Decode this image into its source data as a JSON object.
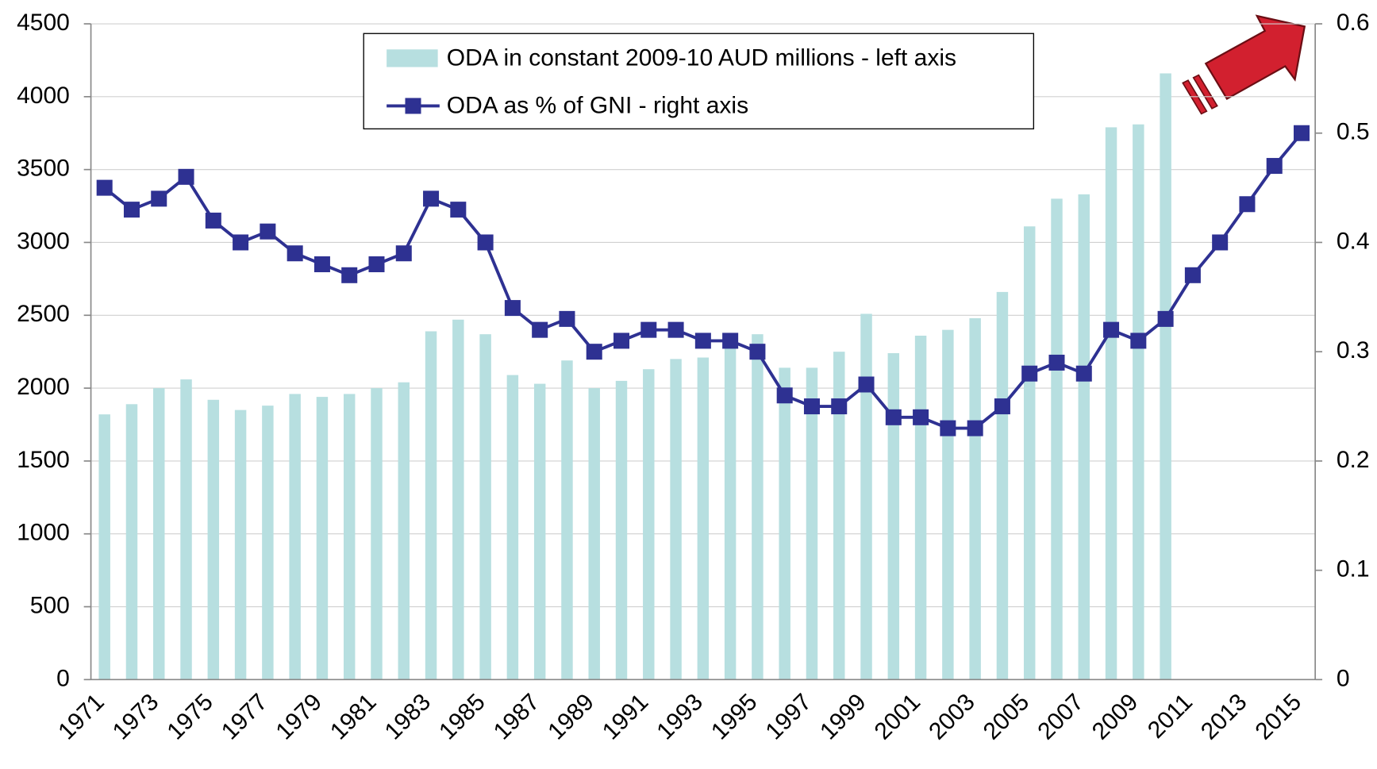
{
  "chart_data": {
    "type": "bar_line",
    "categories": [
      "1971",
      null,
      "1973",
      null,
      "1975",
      null,
      "1977",
      null,
      "1979",
      null,
      "1981",
      null,
      "1983",
      null,
      "1985",
      null,
      "1987",
      null,
      "1989",
      null,
      "1991",
      null,
      "1993",
      null,
      "1995",
      null,
      "1997",
      null,
      "1999",
      null,
      "2001",
      null,
      "2003",
      null,
      "2005",
      null,
      "2007",
      null,
      "2009",
      null,
      "2011",
      null,
      "2013",
      null,
      "2015"
    ],
    "series": [
      {
        "name": "ODA in constant 2009-10 AUD millions - left axis",
        "type": "bar",
        "color": "#b7dfe0",
        "values": [
          1820,
          1890,
          2000,
          2060,
          1920,
          1850,
          1880,
          1960,
          1940,
          1960,
          2000,
          2040,
          2390,
          2470,
          2370,
          2090,
          2030,
          2190,
          2000,
          2050,
          2130,
          2200,
          2210,
          2360,
          2370,
          2140,
          2140,
          2250,
          2510,
          2240,
          2360,
          2400,
          2480,
          2660,
          3110,
          3300,
          3330,
          3790,
          3810,
          4160,
          null,
          null,
          null,
          null,
          null
        ]
      },
      {
        "name": "ODA as % of GNI - right axis",
        "type": "line",
        "axis": "y2",
        "color": "#2e3192",
        "values": [
          0.45,
          0.43,
          0.44,
          0.46,
          0.42,
          0.4,
          0.41,
          0.39,
          0.38,
          0.37,
          0.38,
          0.39,
          0.44,
          0.43,
          0.4,
          0.34,
          0.32,
          0.33,
          0.3,
          0.31,
          0.32,
          0.32,
          0.31,
          0.31,
          0.3,
          0.26,
          0.25,
          0.25,
          0.27,
          0.24,
          0.24,
          0.23,
          0.23,
          0.25,
          0.28,
          0.29,
          0.28,
          0.32,
          0.31,
          0.33,
          0.37,
          0.4,
          0.435,
          0.47,
          0.5
        ]
      }
    ],
    "ylim": [
      0,
      4500
    ],
    "yticks": [
      0,
      500,
      1000,
      1500,
      2000,
      2500,
      3000,
      3500,
      4000,
      4500
    ],
    "y2lim": [
      0,
      0.6
    ],
    "y2ticks": [
      0,
      0.1,
      0.2,
      0.3,
      0.4,
      0.5,
      0.6
    ],
    "grid": true
  }
}
